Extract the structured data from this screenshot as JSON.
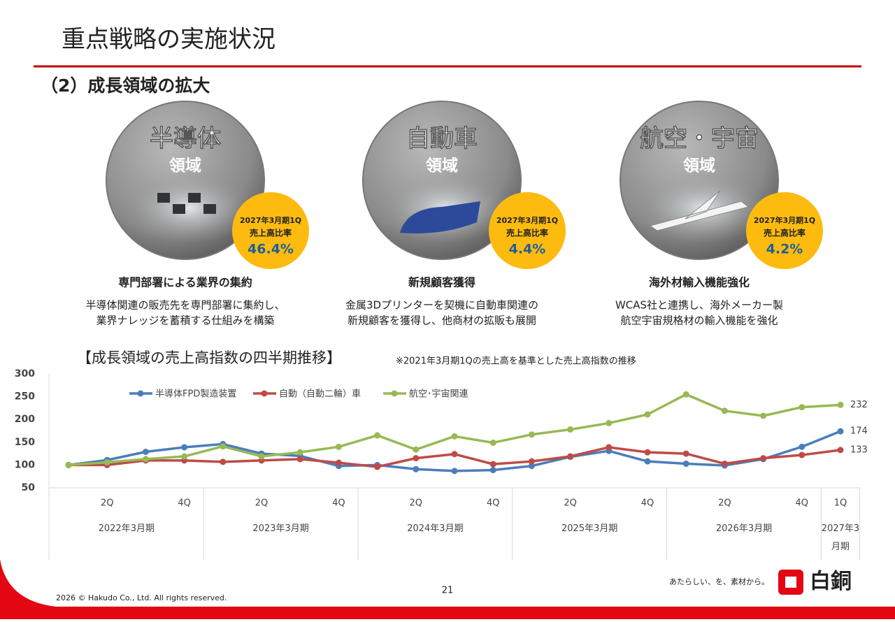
{
  "header": {
    "title": "重点戦略の実施状況",
    "subtitle": "（2）成長領域の拡大"
  },
  "segments": [
    {
      "title": "半導体",
      "sub": "領域",
      "badge_period": "2027年3月期1Q",
      "badge_label": "売上高比率",
      "ratio": "46.4%",
      "heading": "専門部署による業界の集約",
      "desc": [
        "半導体関連の販売先を専門部署に集約し、",
        "業界ナレッジを蓄積する仕組みを構築"
      ]
    },
    {
      "title": "自動車",
      "sub": "領域",
      "badge_period": "2027年3月期1Q",
      "badge_label": "売上高比率",
      "ratio": "4.4%",
      "heading": "新規顧客獲得",
      "desc": [
        "金属3Dプリンターを契機に自動車関連の",
        "新規顧客を獲得し、他商材の拡販も展開"
      ]
    },
    {
      "title": "航空・宇宙",
      "sub": "領域",
      "badge_period": "2027年3月期1Q",
      "badge_label": "売上高比率",
      "ratio": "4.2%",
      "heading": "海外材輸入機能強化",
      "desc": [
        "WCAS社と連携し、海外メーカー製",
        "航空宇宙規格材の輸入機能を強化"
      ]
    }
  ],
  "chart_data": {
    "type": "line",
    "title": "【成長領域の売上高指数の四半期推移】",
    "subtitle": "※2021年3月期1Qの売上高を基準とした売上高指数の推移",
    "categories": [
      null,
      "2Q",
      null,
      "4Q",
      null,
      "2Q",
      null,
      "4Q",
      null,
      "2Q",
      null,
      "4Q",
      null,
      "2Q",
      null,
      "4Q",
      null,
      "2Q",
      null,
      "4Q",
      "1Q"
    ],
    "groups": [
      "2022年3月期",
      "2023年3月期",
      "2024年3月期",
      "2025年3月期",
      "2026年3月期",
      "2027年3月期"
    ],
    "ylim": [
      50,
      300
    ],
    "yticks": [
      50,
      100,
      150,
      200,
      250,
      300
    ],
    "grid": false,
    "series": [
      {
        "name": "半導体FPD製造装置",
        "color": "#4a7ebb",
        "values": [
          100,
          111,
          129,
          139,
          146,
          125,
          120,
          98,
          100,
          91,
          87,
          89,
          98,
          118,
          131,
          108,
          103,
          99,
          113,
          140,
          174
        ]
      },
      {
        "name": "自動（自動二輪）車",
        "color": "#be4b48",
        "values": [
          100,
          100,
          110,
          110,
          107,
          110,
          113,
          105,
          96,
          115,
          124,
          102,
          108,
          119,
          139,
          128,
          125,
          103,
          115,
          122,
          133
        ]
      },
      {
        "name": "航空･宇宙関連",
        "color": "#98b954",
        "values": [
          100,
          106,
          113,
          119,
          141,
          119,
          128,
          140,
          165,
          134,
          163,
          149,
          167,
          178,
          192,
          211,
          255,
          219,
          208,
          227,
          232
        ]
      }
    ]
  },
  "footer": {
    "page": "21",
    "copyright": "2026 © Hakudo Co., Ltd. All rights reserved.",
    "tagline": "あたらしい、を、素材から。",
    "logo": "白銅"
  }
}
